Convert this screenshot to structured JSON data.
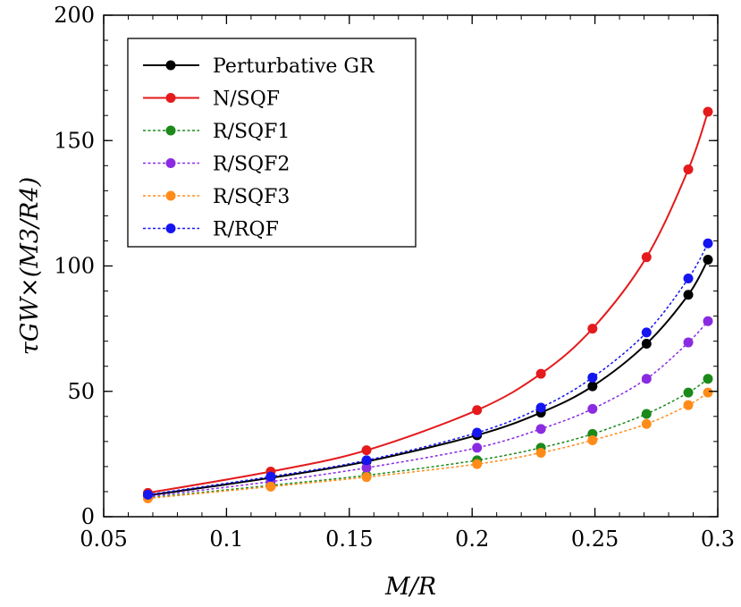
{
  "chart_data": {
    "type": "line",
    "xlabel": "M/R",
    "ylabel": "τGW×(M3/R4)",
    "xlim": [
      0.05,
      0.3
    ],
    "ylim": [
      0,
      200
    ],
    "xticks": [
      "0.05",
      "0.1",
      "0.15",
      "0.2",
      "0.25",
      "0.3"
    ],
    "yticks": [
      "0",
      "50",
      "100",
      "150",
      "200"
    ],
    "grid": false,
    "legend": "top-left",
    "series": [
      {
        "name": "Perturbative GR",
        "color": "#000000",
        "dash": "solid",
        "x": [
          0.068,
          0.118,
          0.157,
          0.202,
          0.228,
          0.249,
          0.271,
          0.288,
          0.296
        ],
        "y": [
          8.5,
          15.5,
          22.0,
          32.5,
          41.5,
          52.0,
          69.0,
          88.5,
          102.5
        ]
      },
      {
        "name": "N/SQF",
        "color": "#e41a1c",
        "dash": "solid",
        "x": [
          0.068,
          0.118,
          0.157,
          0.202,
          0.228,
          0.249,
          0.271,
          0.288,
          0.296
        ],
        "y": [
          9.5,
          18.0,
          26.5,
          42.5,
          57.0,
          75.0,
          103.5,
          138.5,
          161.5
        ]
      },
      {
        "name": "R/SQF1",
        "color": "#1b8a1b",
        "dash": "dotted",
        "x": [
          0.068,
          0.118,
          0.157,
          0.202,
          0.228,
          0.249,
          0.271,
          0.288,
          0.296
        ],
        "y": [
          7.5,
          12.5,
          16.5,
          22.5,
          27.5,
          33.0,
          41.0,
          49.5,
          55.0
        ]
      },
      {
        "name": "R/SQF2",
        "color": "#8a2be2",
        "dash": "dotted",
        "x": [
          0.068,
          0.118,
          0.157,
          0.202,
          0.228,
          0.249,
          0.271,
          0.288,
          0.296
        ],
        "y": [
          8.0,
          14.0,
          19.5,
          27.5,
          35.0,
          43.0,
          55.0,
          69.5,
          78.0
        ]
      },
      {
        "name": "R/SQF3",
        "color": "#ff8c1a",
        "dash": "dotted",
        "x": [
          0.068,
          0.118,
          0.157,
          0.202,
          0.228,
          0.249,
          0.271,
          0.288,
          0.296
        ],
        "y": [
          7.3,
          12.0,
          15.8,
          21.0,
          25.5,
          30.5,
          37.0,
          44.5,
          49.5
        ]
      },
      {
        "name": "R/RQF",
        "color": "#1515f0",
        "dash": "dotted",
        "x": [
          0.068,
          0.118,
          0.157,
          0.202,
          0.228,
          0.249,
          0.271,
          0.288,
          0.296
        ],
        "y": [
          8.8,
          16.0,
          22.5,
          33.5,
          43.5,
          55.5,
          73.5,
          95.0,
          109.0
        ]
      }
    ]
  }
}
